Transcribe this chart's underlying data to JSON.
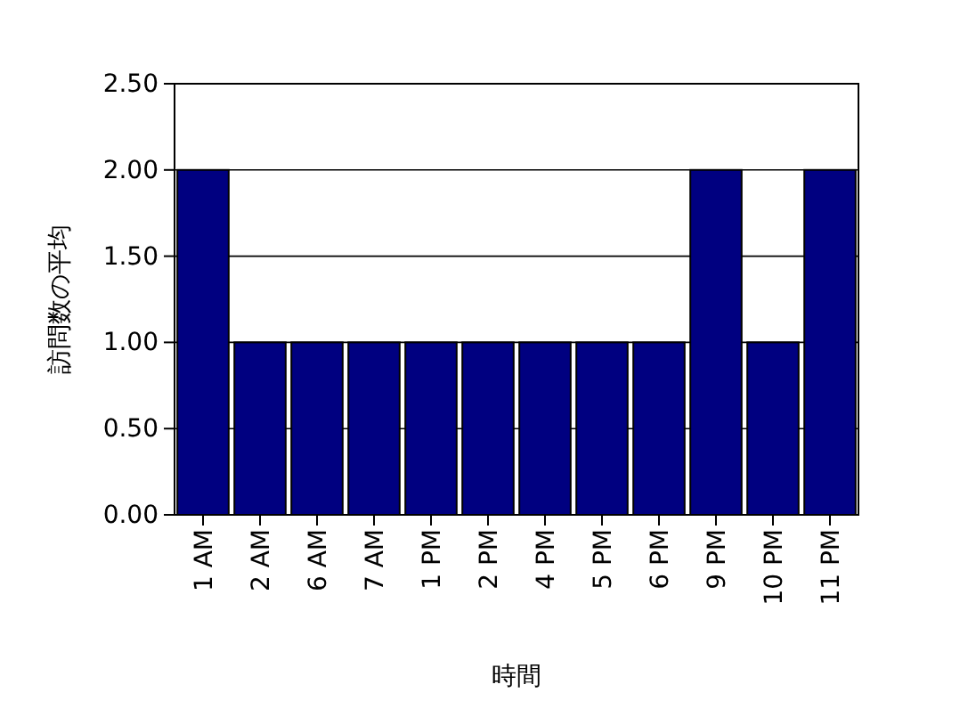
{
  "chart_data": {
    "type": "bar",
    "xlabel": "時間",
    "ylabel": "訪問数の平均",
    "categories": [
      "1 AM",
      "2 AM",
      "6 AM",
      "7 AM",
      "1 PM",
      "2 PM",
      "4 PM",
      "5 PM",
      "6 PM",
      "9 PM",
      "10 PM",
      "11 PM"
    ],
    "values": [
      2,
      1,
      1,
      1,
      1,
      1,
      1,
      1,
      1,
      2,
      1,
      2
    ],
    "color": "#000080",
    "ylim": [
      0,
      2.5
    ],
    "yticks": [
      {
        "value": 0,
        "label": "0.00"
      },
      {
        "value": 0.5,
        "label": "0.50"
      },
      {
        "value": 1,
        "label": "1.00"
      },
      {
        "value": 1.5,
        "label": "1.50"
      },
      {
        "value": 2,
        "label": "2.00"
      },
      {
        "value": 2.5,
        "label": "2.50"
      }
    ],
    "grid": "y"
  }
}
